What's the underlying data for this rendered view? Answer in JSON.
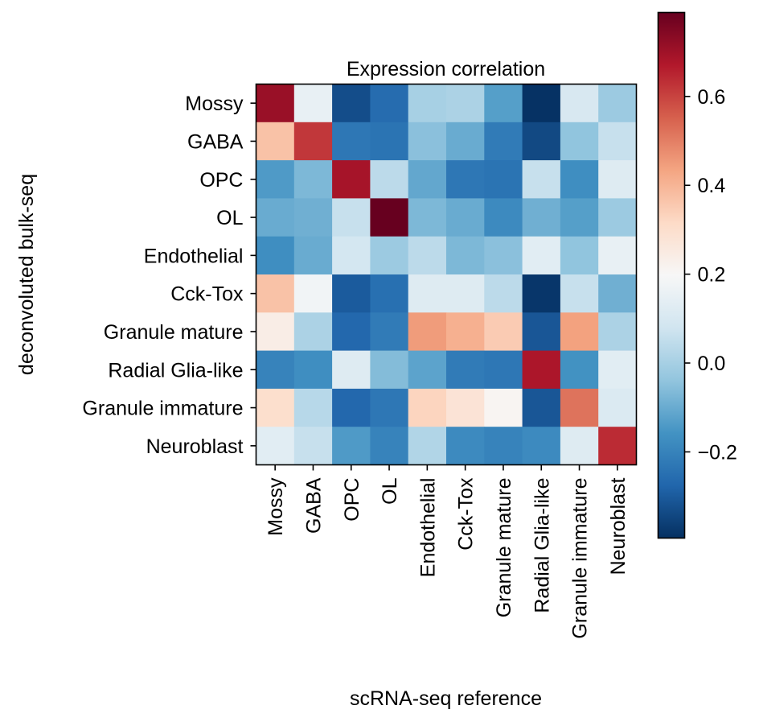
{
  "chart_data": {
    "type": "heatmap",
    "title": "Expression correlation",
    "xlabel": "scRNA-seq reference",
    "ylabel": "deconvoluted bulk-seq",
    "x_categories": [
      "Mossy",
      "GABA",
      "OPC",
      "OL",
      "Endothelial",
      "Cck-Tox",
      "Granule mature",
      "Radial Glia-like",
      "Granule immature",
      "Neuroblast"
    ],
    "y_categories": [
      "Mossy",
      "GABA",
      "OPC",
      "OL",
      "Endothelial",
      "Cck-Tox",
      "Granule mature",
      "Radial Glia-like",
      "Granule immature",
      "Neuroblast"
    ],
    "values": [
      [
        0.71,
        0.15,
        -0.33,
        -0.26,
        0.0,
        0.01,
        -0.13,
        -0.39,
        0.1,
        -0.02
      ],
      [
        0.37,
        0.62,
        -0.23,
        -0.24,
        -0.05,
        -0.1,
        -0.22,
        -0.34,
        -0.04,
        0.06
      ],
      [
        -0.14,
        -0.07,
        0.69,
        0.04,
        -0.11,
        -0.23,
        -0.24,
        0.06,
        -0.17,
        0.12
      ],
      [
        -0.1,
        -0.09,
        0.06,
        0.79,
        -0.07,
        -0.1,
        -0.18,
        -0.09,
        -0.13,
        -0.02
      ],
      [
        -0.17,
        -0.1,
        0.09,
        -0.02,
        0.04,
        -0.07,
        -0.05,
        0.13,
        -0.04,
        0.15
      ],
      [
        0.37,
        0.18,
        -0.3,
        -0.25,
        0.12,
        0.12,
        0.04,
        -0.38,
        0.06,
        -0.09
      ],
      [
        0.24,
        0.01,
        -0.27,
        -0.22,
        0.45,
        0.41,
        0.35,
        -0.31,
        0.44,
        0.01
      ],
      [
        -0.2,
        -0.17,
        0.12,
        -0.06,
        -0.12,
        -0.22,
        -0.23,
        0.68,
        -0.16,
        0.13
      ],
      [
        0.3,
        0.03,
        -0.27,
        -0.23,
        0.33,
        0.28,
        0.21,
        -0.31,
        0.52,
        0.11
      ],
      [
        0.13,
        0.06,
        -0.14,
        -0.2,
        0.02,
        -0.18,
        -0.2,
        -0.18,
        0.12,
        0.64
      ]
    ],
    "colormap": "RdBu_r",
    "colormap_stops": [
      "#053061",
      "#2166ac",
      "#4393c3",
      "#92c5de",
      "#d1e5f0",
      "#f7f7f7",
      "#fddbc7",
      "#f4a582",
      "#d6604d",
      "#b2182b",
      "#67001f"
    ],
    "vmin": -0.394,
    "vmax": 0.789,
    "colorbar": {
      "ticks": [
        -0.2,
        0.0,
        0.2,
        0.4,
        0.6
      ],
      "tick_labels": [
        "−0.2",
        "0.0",
        "0.2",
        "0.4",
        "0.6"
      ],
      "placement": "right"
    },
    "grid": false
  }
}
